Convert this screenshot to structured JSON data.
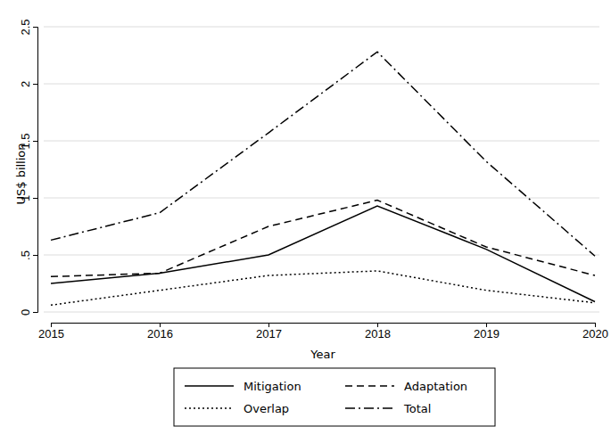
{
  "chart_data": {
    "type": "line",
    "y_label": "US$ billion",
    "x_label": "Year",
    "x": [
      2015,
      2016,
      2017,
      2018,
      2019,
      2020
    ],
    "xlim": [
      2015,
      2020
    ],
    "xticks": [
      2015,
      2016,
      2017,
      2018,
      2019,
      2020
    ],
    "ylim": [
      0,
      2.5
    ],
    "yticks": [
      0,
      {
        "value": 0.5,
        "label": ".5"
      },
      1,
      1.5,
      2,
      2.5
    ],
    "grid": true,
    "legend": "bottom",
    "series": [
      {
        "name": "Mitigation",
        "color": "#000000",
        "line_style": "solid",
        "values": [
          0.25,
          0.34,
          0.5,
          0.93,
          0.55,
          0.09
        ]
      },
      {
        "name": "Adaptation",
        "color": "#000000",
        "line_style": "dashed",
        "values": [
          0.31,
          0.34,
          0.75,
          0.98,
          0.57,
          0.32
        ]
      },
      {
        "name": "Overlap",
        "color": "#000000",
        "line_style": "dotted",
        "values": [
          0.06,
          0.19,
          0.32,
          0.36,
          0.19,
          0.08
        ]
      },
      {
        "name": "Total",
        "color": "#000000",
        "line_style": "dashdot",
        "values": [
          0.63,
          0.87,
          1.57,
          2.28,
          1.32,
          0.49
        ]
      }
    ]
  }
}
